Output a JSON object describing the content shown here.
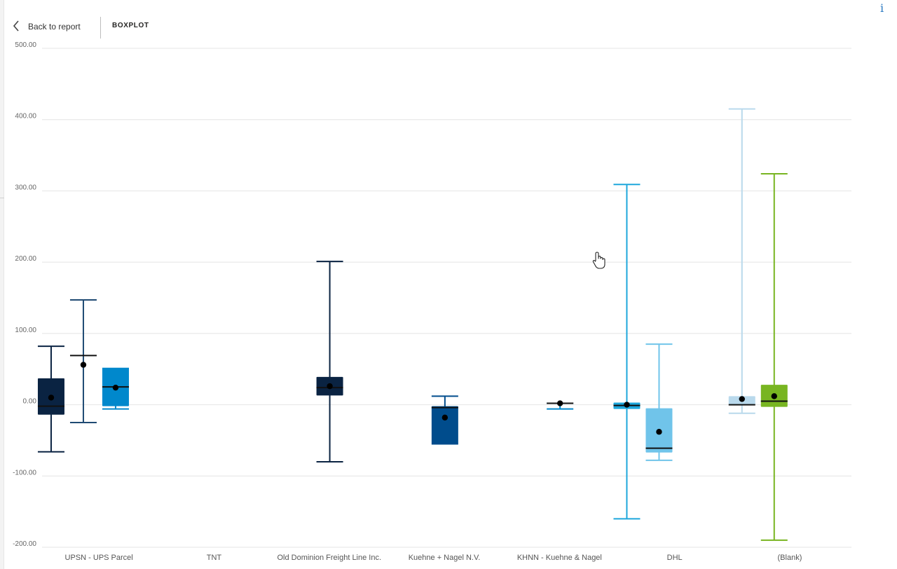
{
  "header": {
    "back_label": "Back to report",
    "title": "BOXPLOT"
  },
  "icons": {
    "back": "chevron-left-icon",
    "info": "info-icon",
    "cursor": "hand-pointer-icon"
  },
  "info_glyph": "i",
  "chart_data": {
    "type": "boxplot",
    "title": "",
    "xlabel": "",
    "ylabel": "",
    "ylim": [
      -200,
      500
    ],
    "yticks": [
      -200,
      -100,
      0,
      100,
      200,
      300,
      400,
      500
    ],
    "ytick_labels": [
      "-200.00",
      "-100.00",
      "0.00",
      "100.00",
      "200.00",
      "300.00",
      "400.00",
      "500.00"
    ],
    "grid": true,
    "categories": [
      "UPSN - UPS Parcel",
      "TNT",
      "Old Dominion Freight Line Inc.",
      "Kuehne + Nagel N.V.",
      "KHNN - Kuehne & Nagel",
      "DHL",
      "(Blank)"
    ],
    "boxes": [
      {
        "category": 0,
        "slot": -1,
        "color": "#0a2342",
        "whisker_color": "#0a2342",
        "min": -66,
        "q1": -14,
        "median": -2,
        "q3": 37,
        "max": 82,
        "mean": 10
      },
      {
        "category": 0,
        "slot": 0,
        "color": "#ffffff",
        "whisker_color": "#1f4a73",
        "min": -25,
        "q1": 69,
        "median": 69,
        "q3": 69,
        "max": 147,
        "mean": 56
      },
      {
        "category": 0,
        "slot": 1,
        "color": "#0088cc",
        "whisker_color": "#0088cc",
        "min": -6,
        "q1": -2,
        "median": 25,
        "q3": 51,
        "max": 51,
        "mean": 24
      },
      {
        "category": 2,
        "slot": 0.5,
        "color": "#0a2342",
        "whisker_color": "#0a2342",
        "min": -80,
        "q1": 13,
        "median": 24,
        "q3": 39,
        "max": 201,
        "mean": 26
      },
      {
        "category": 3,
        "slot": 0.5,
        "color": "#004c8c",
        "whisker_color": "#004c8c",
        "min": -55,
        "q1": -55,
        "median": -4,
        "q3": -2,
        "max": 12,
        "mean": -18
      },
      {
        "category": 4,
        "slot": 0.5,
        "color": "#0088cc",
        "whisker_color": "#0088cc",
        "min": -6,
        "q1": 2,
        "median": 2,
        "q3": 2,
        "max": 2,
        "mean": 2
      },
      {
        "category": 5,
        "slot": -1,
        "color": "#1ea7dc",
        "whisker_color": "#1ea7dc",
        "min": -160,
        "q1": -6,
        "median": -1,
        "q3": 3,
        "max": 309,
        "mean": 0
      },
      {
        "category": 5,
        "slot": 0,
        "color": "#70c4ea",
        "whisker_color": "#70c4ea",
        "min": -78,
        "q1": -67,
        "median": -61,
        "q3": -5,
        "max": 85,
        "mean": -38
      },
      {
        "category": 6,
        "slot": -1,
        "color": "#b9d9ec",
        "whisker_color": "#b9d9ec",
        "min": -12,
        "q1": 0,
        "median": 0,
        "q3": 12,
        "max": 415,
        "mean": 8
      },
      {
        "category": 6,
        "slot": 0,
        "color": "#78b521",
        "whisker_color": "#78b521",
        "min": -190,
        "q1": -3,
        "median": 5,
        "q3": 28,
        "max": 324,
        "mean": 12
      }
    ]
  }
}
